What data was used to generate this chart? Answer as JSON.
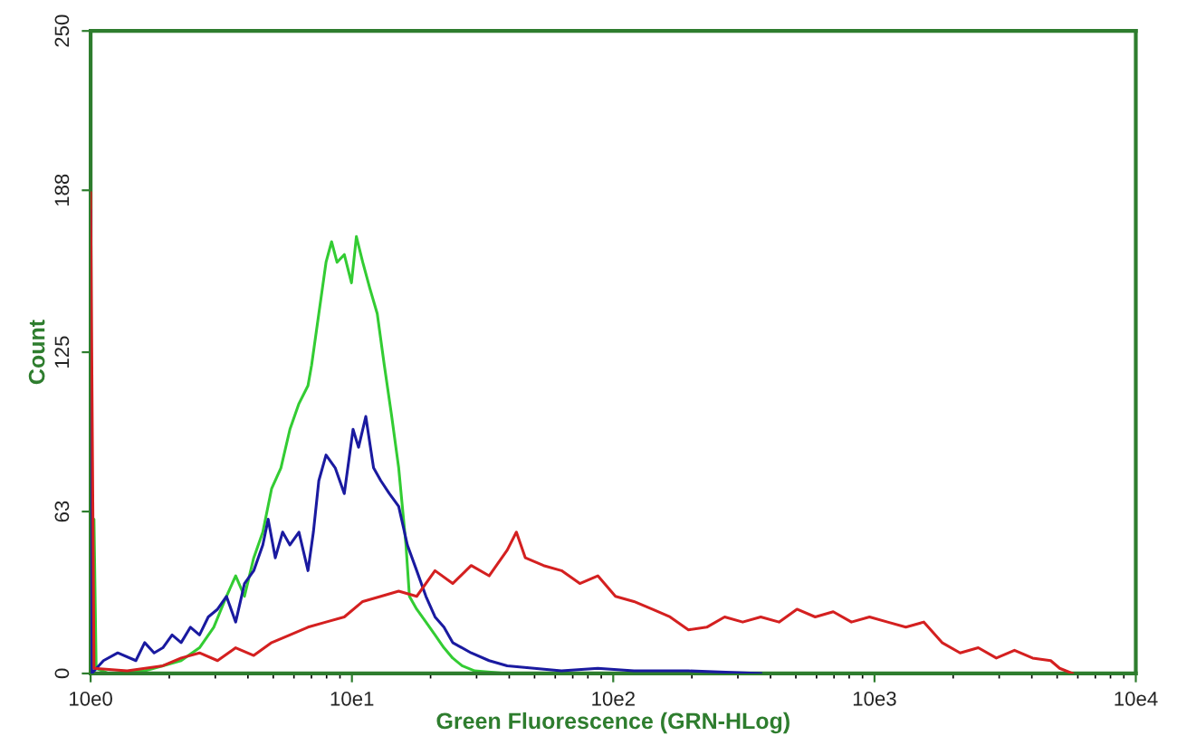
{
  "chart_data": {
    "type": "line",
    "xlabel": "Green Fluorescence (GRN-HLog)",
    "ylabel": "Count",
    "log": "x",
    "xlim": [
      10,
      100000
    ],
    "xticks": [
      {
        "value": 10,
        "label": "10e0"
      },
      {
        "value": 100,
        "label": "10e1"
      },
      {
        "value": 1000,
        "label": "10e2"
      },
      {
        "value": 10000,
        "label": "10e3"
      },
      {
        "value": 100000,
        "label": "10e4"
      }
    ],
    "ylim": [
      0,
      250
    ],
    "yticks": [
      0,
      63,
      125,
      188,
      250
    ],
    "grid": false,
    "legend": false,
    "marker": "none",
    "line_style": "solid",
    "series": [
      {
        "color": "#33cc33",
        "x": [
          10,
          10.3,
          10.5,
          11.7,
          16.1,
          18.9,
          22.2,
          26.1,
          29.6,
          33.1,
          35.9,
          38.8,
          42.1,
          45.6,
          49.3,
          53.5,
          57.9,
          62.7,
          67.9,
          70.1,
          74.7,
          79.6,
          83.6,
          87.7,
          93.5,
          99.6,
          104,
          110,
          117,
          125,
          133,
          142,
          151,
          161,
          166,
          177,
          192,
          208,
          225,
          243,
          264,
          295,
          393,
          873
        ],
        "values": [
          0,
          60,
          2,
          0,
          1,
          3,
          5,
          10,
          18,
          30,
          38,
          30,
          45,
          55,
          72,
          80,
          95,
          105,
          112,
          120,
          140,
          160,
          168,
          160,
          163,
          152,
          170,
          160,
          150,
          140,
          120,
          100,
          80,
          50,
          30,
          25,
          20,
          15,
          10,
          6,
          3,
          1,
          0,
          0
        ]
      },
      {
        "color": "#1a1aa0",
        "x": [
          10,
          10.1,
          11.2,
          12.7,
          14.9,
          16.1,
          17.5,
          18.9,
          20.5,
          22.2,
          24.1,
          26.1,
          28.2,
          30.6,
          33.1,
          35.9,
          38.8,
          42.1,
          45.6,
          47.8,
          50.9,
          54.3,
          57.9,
          62.7,
          67.9,
          71.2,
          74.7,
          79.6,
          86.3,
          93.5,
          101,
          106,
          113,
          121,
          129,
          139,
          151,
          163,
          177,
          192,
          208,
          225,
          243,
          286,
          335,
          393,
          499,
          634,
          873,
          1200,
          1940,
          3670
        ],
        "values": [
          180,
          0,
          5,
          8,
          5,
          12,
          8,
          10,
          15,
          12,
          18,
          15,
          22,
          25,
          30,
          20,
          35,
          40,
          50,
          60,
          45,
          55,
          50,
          55,
          40,
          55,
          75,
          85,
          80,
          70,
          95,
          88,
          100,
          80,
          75,
          70,
          65,
          50,
          40,
          30,
          22,
          18,
          12,
          8,
          5,
          3,
          2,
          1,
          2,
          1,
          1,
          0
        ]
      },
      {
        "color": "#d42020",
        "x": [
          10,
          10.3,
          13.8,
          18.9,
          22.2,
          26.1,
          30.6,
          35.9,
          42.1,
          49.3,
          57.9,
          67.9,
          79.6,
          93.5,
          110,
          129,
          151,
          177,
          208,
          243,
          286,
          335,
          393,
          426,
          461,
          541,
          634,
          745,
          873,
          1020,
          1200,
          1410,
          1650,
          1940,
          2280,
          2670,
          3130,
          3670,
          4310,
          5050,
          5930,
          6950,
          8160,
          9570,
          11220,
          13180,
          15450,
          18130,
          21270,
          24950,
          29260,
          34330,
          40270,
          47230,
          51140,
          57190
        ],
        "values": [
          187,
          2,
          1,
          3,
          6,
          8,
          5,
          10,
          7,
          12,
          15,
          18,
          20,
          22,
          28,
          30,
          32,
          30,
          40,
          35,
          42,
          38,
          48,
          55,
          45,
          42,
          40,
          35,
          38,
          30,
          28,
          25,
          22,
          17,
          18,
          22,
          20,
          22,
          20,
          25,
          22,
          24,
          20,
          22,
          20,
          18,
          20,
          12,
          8,
          10,
          6,
          9,
          6,
          5,
          2,
          0
        ]
      }
    ]
  }
}
